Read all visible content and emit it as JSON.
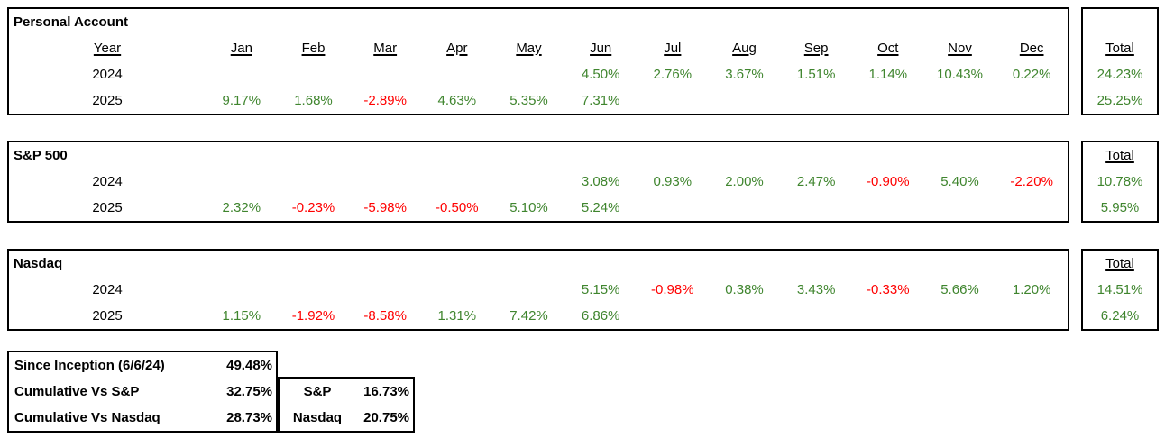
{
  "colors": {
    "positive": "#3f852e",
    "negative": "#ff0000",
    "text": "#000000",
    "border": "#000000",
    "background": "#ffffff"
  },
  "year_header": "Year",
  "total_header": "Total",
  "months": [
    "Jan",
    "Feb",
    "Mar",
    "Apr",
    "May",
    "Jun",
    "Jul",
    "Aug",
    "Sep",
    "Oct",
    "Nov",
    "Dec"
  ],
  "tables": [
    {
      "title": "Personal Account",
      "has_header_row": true,
      "rows": [
        {
          "year": "2024",
          "values": [
            "",
            "",
            "",
            "",
            "",
            "4.50%",
            "2.76%",
            "3.67%",
            "1.51%",
            "1.14%",
            "10.43%",
            "0.22%"
          ],
          "total": "24.23%"
        },
        {
          "year": "2025",
          "values": [
            "9.17%",
            "1.68%",
            "-2.89%",
            "4.63%",
            "5.35%",
            "7.31%",
            "",
            "",
            "",
            "",
            "",
            ""
          ],
          "total": "25.25%"
        }
      ]
    },
    {
      "title": "S&P 500",
      "has_header_row": false,
      "rows": [
        {
          "year": "2024",
          "values": [
            "",
            "",
            "",
            "",
            "",
            "3.08%",
            "0.93%",
            "2.00%",
            "2.47%",
            "-0.90%",
            "5.40%",
            "-2.20%"
          ],
          "total": "10.78%"
        },
        {
          "year": "2025",
          "values": [
            "2.32%",
            "-0.23%",
            "-5.98%",
            "-0.50%",
            "5.10%",
            "5.24%",
            "",
            "",
            "",
            "",
            "",
            ""
          ],
          "total": "5.95%"
        }
      ]
    },
    {
      "title": "Nasdaq",
      "has_header_row": false,
      "rows": [
        {
          "year": "2024",
          "values": [
            "",
            "",
            "",
            "",
            "",
            "5.15%",
            "-0.98%",
            "0.38%",
            "3.43%",
            "-0.33%",
            "5.66%",
            "1.20%"
          ],
          "total": "14.51%"
        },
        {
          "year": "2025",
          "values": [
            "1.15%",
            "-1.92%",
            "-8.58%",
            "1.31%",
            "7.42%",
            "6.86%",
            "",
            "",
            "",
            "",
            "",
            ""
          ],
          "total": "6.24%"
        }
      ]
    }
  ],
  "summary": {
    "left": [
      {
        "label": "Since Inception (6/6/24)",
        "value": "49.48%"
      },
      {
        "label": "Cumulative Vs S&P",
        "value": "32.75%"
      },
      {
        "label": "Cumulative Vs Nasdaq",
        "value": "28.73%"
      }
    ],
    "right": [
      {
        "label": "S&P",
        "value": "16.73%"
      },
      {
        "label": "Nasdaq",
        "value": "20.75%"
      }
    ]
  }
}
